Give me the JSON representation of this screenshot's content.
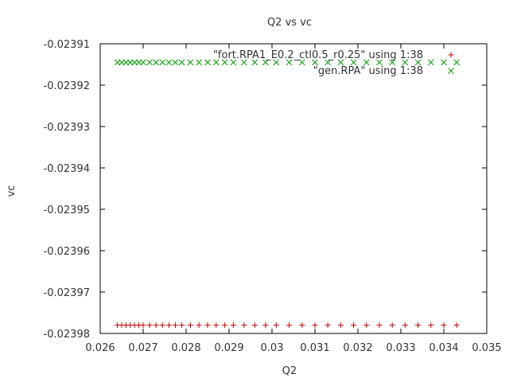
{
  "chart_data": {
    "type": "scatter",
    "title": "Q2 vs vc",
    "xlabel": "Q2",
    "ylabel": "vc",
    "xlim": [
      0.026,
      0.035
    ],
    "ylim": [
      -0.02398,
      -0.02391
    ],
    "xticks": [
      {
        "value": 0.026,
        "label": "0.026"
      },
      {
        "value": 0.027,
        "label": "0.027"
      },
      {
        "value": 0.028,
        "label": "0.028"
      },
      {
        "value": 0.029,
        "label": "0.029"
      },
      {
        "value": 0.03,
        "label": "0.03"
      },
      {
        "value": 0.031,
        "label": "0.031"
      },
      {
        "value": 0.032,
        "label": "0.032"
      },
      {
        "value": 0.033,
        "label": "0.033"
      },
      {
        "value": 0.034,
        "label": "0.034"
      },
      {
        "value": 0.035,
        "label": "0.035"
      }
    ],
    "yticks": [
      {
        "value": -0.02391,
        "label": "-0.02391"
      },
      {
        "value": -0.02392,
        "label": "-0.02392"
      },
      {
        "value": -0.02393,
        "label": "-0.02393"
      },
      {
        "value": -0.02394,
        "label": "-0.02394"
      },
      {
        "value": -0.02395,
        "label": "-0.02395"
      },
      {
        "value": -0.02396,
        "label": "-0.02396"
      },
      {
        "value": -0.02397,
        "label": "-0.02397"
      },
      {
        "value": -0.02398,
        "label": "-0.02398"
      }
    ],
    "legend_position": "top-right",
    "grid": false,
    "series": [
      {
        "name": "\"fort.RPA1_E0.2_ctl0.5_r0.25\" using 1:38",
        "marker": "+",
        "color": "#cc0000",
        "x": [
          0.0264,
          0.0265,
          0.0266,
          0.0267,
          0.0268,
          0.0269,
          0.027,
          0.02715,
          0.0273,
          0.02745,
          0.0276,
          0.02775,
          0.0279,
          0.0281,
          0.0283,
          0.0285,
          0.0287,
          0.0289,
          0.0291,
          0.02935,
          0.0296,
          0.02985,
          0.0301,
          0.0304,
          0.0307,
          0.031,
          0.0313,
          0.0316,
          0.0319,
          0.0322,
          0.0325,
          0.0328,
          0.0331,
          0.0334,
          0.0337,
          0.034,
          0.0343
        ],
        "y": [
          -0.023978,
          -0.023978,
          -0.023978,
          -0.023978,
          -0.023978,
          -0.023978,
          -0.023978,
          -0.023978,
          -0.023978,
          -0.023978,
          -0.023978,
          -0.023978,
          -0.023978,
          -0.023978,
          -0.023978,
          -0.023978,
          -0.023978,
          -0.023978,
          -0.023978,
          -0.023978,
          -0.023978,
          -0.023978,
          -0.023978,
          -0.023978,
          -0.023978,
          -0.023978,
          -0.023978,
          -0.023978,
          -0.023978,
          -0.023978,
          -0.023978,
          -0.023978,
          -0.023978,
          -0.023978,
          -0.023978,
          -0.023978,
          -0.023978
        ]
      },
      {
        "name": "\"gen.RPA\" using 1:38",
        "marker": "x",
        "color": "#00a000",
        "x": [
          0.0264,
          0.0265,
          0.0266,
          0.0267,
          0.0268,
          0.0269,
          0.027,
          0.02715,
          0.0273,
          0.02745,
          0.0276,
          0.02775,
          0.0279,
          0.0281,
          0.0283,
          0.0285,
          0.0287,
          0.0289,
          0.0291,
          0.02935,
          0.0296,
          0.02985,
          0.0301,
          0.0304,
          0.0307,
          0.031,
          0.0313,
          0.0316,
          0.0319,
          0.0322,
          0.0325,
          0.0328,
          0.0331,
          0.0334,
          0.0337,
          0.034,
          0.0343
        ],
        "y": [
          -0.0239145,
          -0.0239145,
          -0.0239145,
          -0.0239145,
          -0.0239145,
          -0.0239145,
          -0.0239145,
          -0.0239145,
          -0.0239145,
          -0.0239145,
          -0.0239145,
          -0.0239145,
          -0.0239145,
          -0.0239145,
          -0.0239145,
          -0.0239145,
          -0.0239145,
          -0.0239145,
          -0.0239145,
          -0.0239145,
          -0.0239145,
          -0.0239145,
          -0.0239145,
          -0.0239145,
          -0.0239145,
          -0.0239145,
          -0.0239145,
          -0.0239145,
          -0.0239145,
          -0.0239145,
          -0.0239145,
          -0.0239145,
          -0.0239145,
          -0.0239145,
          -0.0239145,
          -0.0239145,
          -0.0239145
        ]
      }
    ]
  }
}
